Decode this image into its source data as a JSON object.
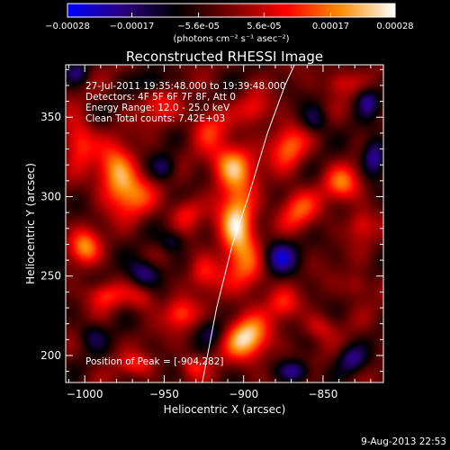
{
  "chart_data": {
    "type": "heatmap",
    "title": "Reconstructed RHESSI Image",
    "xlabel": "Heliocentric X (arcsec)",
    "ylabel": "Heliocentric Y (arcsec)",
    "xlim": [
      -1012,
      -812
    ],
    "ylim": [
      183,
      383
    ],
    "x_ticks": [
      -1000,
      -950,
      -900,
      -850
    ],
    "y_ticks": [
      200,
      250,
      300,
      350
    ],
    "colorbar": {
      "vmin": -0.00028,
      "vmax": 0.00028,
      "tick_values": [
        -0.00028,
        -0.00017,
        -5.6e-05,
        5.6e-05,
        0.00017,
        0.00028
      ],
      "tick_labels": [
        "-0.00028",
        "-0.00017",
        "-5.6e-05",
        "5.6e-05",
        "0.00017",
        "0.00028"
      ],
      "unit_label": "(photons cm⁻² s⁻¹ asec⁻²)",
      "colors": [
        "#0000ff",
        "#2a0080",
        "#000000",
        "#7a0000",
        "#ff0000",
        "#ff8c00",
        "#ffffff"
      ]
    },
    "annotations": [
      "27-Jul-2011 19:35:48.000 to 19:39:48.000",
      "Detectors: 4F 5F 6F 7F 8F, Att 0",
      "Energy Range: 12.0 - 25.0 keV",
      "Clean    Total counts: 7.42E+03"
    ],
    "peak_label": "Position of Peak = [-904,282]",
    "peak": {
      "x": -904,
      "y": 282
    },
    "limb_curve": [
      [
        -926,
        183
      ],
      [
        -917,
        230
      ],
      [
        -907,
        270
      ],
      [
        -897,
        300
      ],
      [
        -885,
        340
      ],
      [
        -874,
        370
      ],
      [
        -868,
        383
      ]
    ],
    "sources": [
      {
        "x": -904,
        "y": 282,
        "value": 0.0003,
        "sx": 8,
        "sy": 16
      },
      {
        "x": -907,
        "y": 320,
        "value": 0.00024,
        "sx": 10,
        "sy": 10
      },
      {
        "x": -895,
        "y": 252,
        "value": 0.00012,
        "sx": 10,
        "sy": 12
      },
      {
        "x": -898,
        "y": 211,
        "value": 0.00027,
        "sx": 10,
        "sy": 10
      },
      {
        "x": -980,
        "y": 316,
        "value": 0.00022,
        "sx": 9,
        "sy": 12
      },
      {
        "x": -970,
        "y": 300,
        "value": 0.00016,
        "sx": 10,
        "sy": 10
      },
      {
        "x": -953,
        "y": 356,
        "value": 0.00012,
        "sx": 8,
        "sy": 8
      },
      {
        "x": -1004,
        "y": 335,
        "value": 0.00018,
        "sx": 7,
        "sy": 10
      },
      {
        "x": -1000,
        "y": 268,
        "value": 0.0002,
        "sx": 7,
        "sy": 8
      },
      {
        "x": -988,
        "y": 238,
        "value": 0.00014,
        "sx": 8,
        "sy": 6
      },
      {
        "x": -964,
        "y": 236,
        "value": 0.00011,
        "sx": 7,
        "sy": 6
      },
      {
        "x": -940,
        "y": 226,
        "value": 0.00016,
        "sx": 7,
        "sy": 7
      },
      {
        "x": -925,
        "y": 252,
        "value": 0.00014,
        "sx": 7,
        "sy": 8
      },
      {
        "x": -937,
        "y": 290,
        "value": 0.00013,
        "sx": 7,
        "sy": 7
      },
      {
        "x": -922,
        "y": 345,
        "value": 0.00013,
        "sx": 8,
        "sy": 9
      },
      {
        "x": -893,
        "y": 355,
        "value": 0.00012,
        "sx": 7,
        "sy": 7
      },
      {
        "x": -872,
        "y": 332,
        "value": 0.00018,
        "sx": 8,
        "sy": 10
      },
      {
        "x": -866,
        "y": 292,
        "value": 0.00016,
        "sx": 9,
        "sy": 9
      },
      {
        "x": -838,
        "y": 308,
        "value": 0.00018,
        "sx": 8,
        "sy": 8
      },
      {
        "x": -826,
        "y": 282,
        "value": 0.00012,
        "sx": 6,
        "sy": 7
      },
      {
        "x": -840,
        "y": 372,
        "value": 0.00012,
        "sx": 7,
        "sy": 6
      },
      {
        "x": -875,
        "y": 232,
        "value": 0.00012,
        "sx": 7,
        "sy": 7
      },
      {
        "x": -852,
        "y": 218,
        "value": 0.0001,
        "sx": 7,
        "sy": 6
      },
      {
        "x": -828,
        "y": 244,
        "value": 0.0001,
        "sx": 6,
        "sy": 6
      },
      {
        "x": -968,
        "y": 194,
        "value": 0.00012,
        "sx": 8,
        "sy": 5
      },
      {
        "x": -932,
        "y": 193,
        "value": 0.00012,
        "sx": 6,
        "sy": 5
      },
      {
        "x": -963,
        "y": 252,
        "value": -0.00018,
        "sx": 7,
        "sy": 6
      },
      {
        "x": -950,
        "y": 318,
        "value": -0.00014,
        "sx": 6,
        "sy": 6
      },
      {
        "x": -995,
        "y": 213,
        "value": -0.0001,
        "sx": 6,
        "sy": 6
      },
      {
        "x": -878,
        "y": 262,
        "value": -0.0002,
        "sx": 8,
        "sy": 8
      },
      {
        "x": -868,
        "y": 190,
        "value": -0.00018,
        "sx": 7,
        "sy": 5
      },
      {
        "x": -832,
        "y": 198,
        "value": -0.00014,
        "sx": 6,
        "sy": 6
      },
      {
        "x": -818,
        "y": 325,
        "value": -0.0002,
        "sx": 5,
        "sy": 8
      },
      {
        "x": -822,
        "y": 360,
        "value": -0.00016,
        "sx": 5,
        "sy": 6
      },
      {
        "x": -855,
        "y": 348,
        "value": -0.00012,
        "sx": 6,
        "sy": 6
      },
      {
        "x": -958,
        "y": 372,
        "value": -0.0001,
        "sx": 6,
        "sy": 5
      },
      {
        "x": -1005,
        "y": 378,
        "value": -0.00012,
        "sx": 5,
        "sy": 5
      },
      {
        "x": -945,
        "y": 272,
        "value": -0.00012,
        "sx": 6,
        "sy": 5
      },
      {
        "x": -920,
        "y": 215,
        "value": -0.0001,
        "sx": 6,
        "sy": 6
      }
    ],
    "background_oscillation": 5e-05
  },
  "footer": {
    "timestamp": "9-Aug-2013 22:53"
  }
}
